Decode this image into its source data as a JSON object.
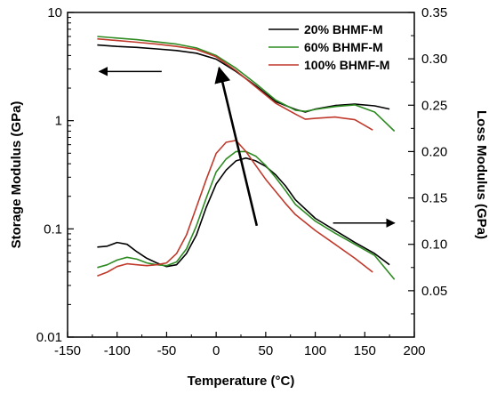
{
  "chart_data": {
    "type": "line",
    "xlabel": "Temperature (°C)",
    "ylabel_left": "Storage Modulus (GPa)",
    "ylabel_right": "Loss Modulus (GPa)",
    "xlim": [
      -150,
      200
    ],
    "ylim_left": [
      0.01,
      10
    ],
    "ylim_right": [
      0.0,
      0.35
    ],
    "left_scale": "log",
    "x_ticks": [
      -150,
      -100,
      -50,
      0,
      50,
      100,
      150,
      200
    ],
    "y_left_ticks": [
      0.01,
      0.1,
      1,
      10
    ],
    "y_left_tick_labels": [
      "0.01",
      "0.1",
      "1",
      "10"
    ],
    "y_right_ticks": [
      0.05,
      0.1,
      0.15,
      0.2,
      0.25,
      0.3,
      0.35
    ],
    "y_right_tick_labels": [
      "0.05",
      "0.10",
      "0.15",
      "0.20",
      "0.25",
      "0.30",
      "0.35"
    ],
    "x_tick_labels": [
      "-150",
      "-100",
      "-50",
      "0",
      "50",
      "100",
      "150",
      "200"
    ],
    "legend_position": "top-right",
    "grid": false,
    "series": [
      {
        "name": "20% BHMF-M",
        "color": "#000000",
        "storage_modulus": {
          "x": [
            -120,
            -100,
            -80,
            -60,
            -40,
            -20,
            0,
            20,
            40,
            60,
            80,
            90,
            100,
            120,
            140,
            160,
            175
          ],
          "y": [
            5.0,
            4.85,
            4.75,
            4.6,
            4.45,
            4.2,
            3.7,
            2.85,
            2.1,
            1.5,
            1.27,
            1.2,
            1.28,
            1.38,
            1.42,
            1.37,
            1.28
          ]
        },
        "loss_modulus": {
          "x": [
            -120,
            -110,
            -100,
            -90,
            -80,
            -70,
            -60,
            -50,
            -40,
            -30,
            -20,
            -10,
            0,
            10,
            20,
            30,
            40,
            50,
            60,
            70,
            80,
            100,
            120,
            140,
            160,
            175
          ],
          "y": [
            0.097,
            0.098,
            0.102,
            0.1,
            0.092,
            0.085,
            0.08,
            0.076,
            0.078,
            0.09,
            0.11,
            0.14,
            0.165,
            0.18,
            0.19,
            0.193,
            0.19,
            0.184,
            0.175,
            0.163,
            0.148,
            0.128,
            0.115,
            0.102,
            0.09,
            0.078
          ]
        }
      },
      {
        "name": "60% BHMF-M",
        "color": "#2e8b22",
        "storage_modulus": {
          "x": [
            -120,
            -100,
            -80,
            -60,
            -40,
            -20,
            0,
            20,
            40,
            60,
            80,
            90,
            100,
            120,
            140,
            160,
            180
          ],
          "y": [
            6.0,
            5.8,
            5.6,
            5.35,
            5.1,
            4.7,
            4.0,
            3.05,
            2.2,
            1.55,
            1.25,
            1.22,
            1.27,
            1.35,
            1.4,
            1.2,
            0.8
          ]
        },
        "loss_modulus": {
          "x": [
            -120,
            -110,
            -100,
            -90,
            -80,
            -70,
            -60,
            -50,
            -40,
            -30,
            -20,
            -10,
            0,
            10,
            20,
            30,
            40,
            50,
            60,
            70,
            80,
            100,
            120,
            140,
            160,
            180
          ],
          "y": [
            0.075,
            0.078,
            0.083,
            0.086,
            0.084,
            0.08,
            0.078,
            0.077,
            0.081,
            0.095,
            0.12,
            0.15,
            0.178,
            0.192,
            0.2,
            0.2,
            0.195,
            0.185,
            0.172,
            0.158,
            0.143,
            0.125,
            0.112,
            0.1,
            0.088,
            0.062
          ]
        }
      },
      {
        "name": "100% BHMF-M",
        "color": "#c0392b",
        "storage_modulus": {
          "x": [
            -120,
            -100,
            -80,
            -60,
            -40,
            -20,
            0,
            20,
            40,
            60,
            80,
            90,
            100,
            120,
            140,
            158
          ],
          "y": [
            5.7,
            5.5,
            5.3,
            5.1,
            4.85,
            4.55,
            3.9,
            2.9,
            2.05,
            1.45,
            1.15,
            1.03,
            1.05,
            1.08,
            1.02,
            0.82
          ]
        },
        "loss_modulus": {
          "x": [
            -120,
            -110,
            -100,
            -90,
            -80,
            -70,
            -60,
            -50,
            -40,
            -30,
            -20,
            -10,
            0,
            10,
            20,
            30,
            40,
            50,
            60,
            70,
            80,
            100,
            120,
            140,
            158
          ],
          "y": [
            0.066,
            0.07,
            0.076,
            0.079,
            0.078,
            0.077,
            0.078,
            0.08,
            0.09,
            0.11,
            0.14,
            0.17,
            0.198,
            0.21,
            0.212,
            0.2,
            0.185,
            0.17,
            0.157,
            0.144,
            0.132,
            0.115,
            0.1,
            0.085,
            0.07
          ]
        }
      }
    ],
    "annotations": {
      "left_arrow": "storage modulus curves read on left axis",
      "right_arrow": "loss modulus curves read on right axis",
      "trend_arrow": "increasing BHMF-M content"
    }
  }
}
